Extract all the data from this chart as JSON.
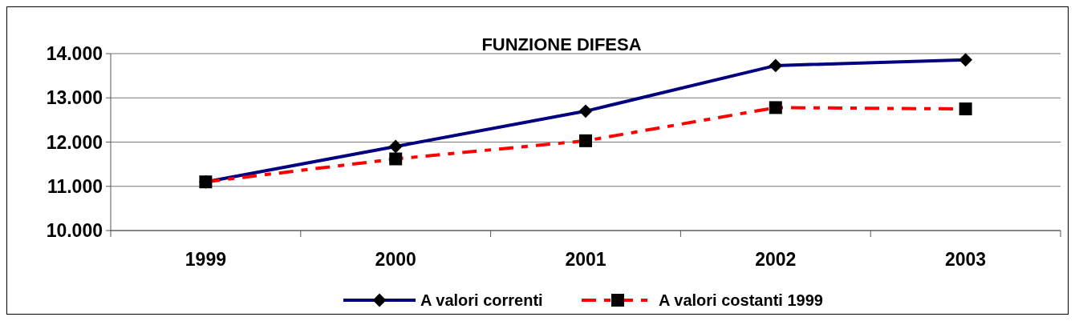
{
  "chart_data": {
    "type": "line",
    "title": "FUNZIONE DIFESA",
    "categories": [
      "1999",
      "2000",
      "2001",
      "2002",
      "2003"
    ],
    "series": [
      {
        "name": "A valori correnti",
        "color": "#000080",
        "marker": "diamond",
        "line_style": "solid",
        "values": [
          11100,
          11900,
          12700,
          13730,
          13860
        ]
      },
      {
        "name": "A valori costanti 1999",
        "color": "#ff0000",
        "marker": "square",
        "line_style": "dashed",
        "values": [
          11100,
          11620,
          12030,
          12780,
          12750
        ]
      }
    ],
    "ylim": [
      10000,
      14000
    ],
    "yticks": [
      {
        "value": 10000,
        "label": "10.000"
      },
      {
        "value": 11000,
        "label": "11.000"
      },
      {
        "value": 12000,
        "label": "12.000"
      },
      {
        "value": 13000,
        "label": "13.000"
      },
      {
        "value": 14000,
        "label": "14.000"
      }
    ],
    "grid": "y",
    "legend": "bottom"
  }
}
